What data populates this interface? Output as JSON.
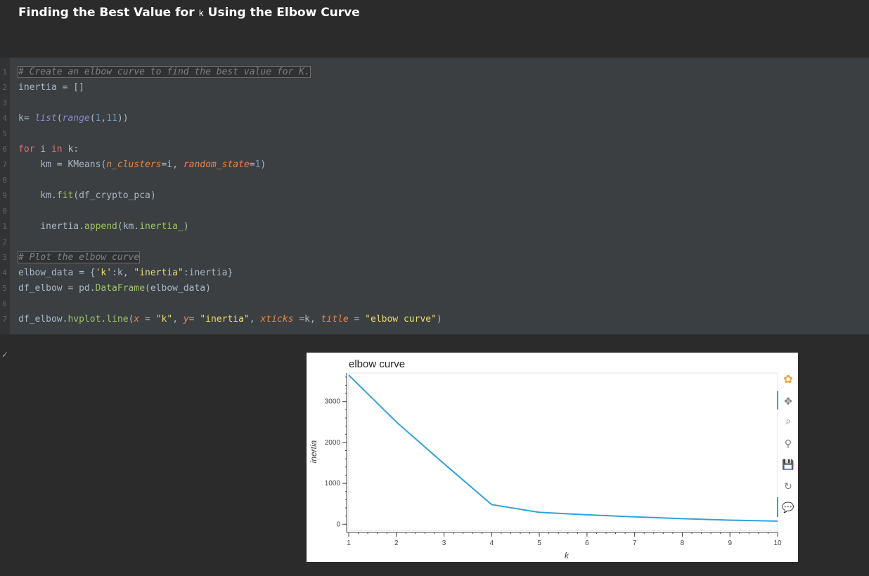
{
  "heading": {
    "before": "Finding the Best Value for ",
    "k": "k",
    "after": " Using the Elbow Curve"
  },
  "code_lines": [
    {
      "n": "1",
      "text": "# Create an elbow curve to find the best value for K."
    },
    {
      "n": "2",
      "text": "inertia = []"
    },
    {
      "n": "3",
      "text": ""
    },
    {
      "n": "4",
      "text": "k= list(range(1,11))"
    },
    {
      "n": "5",
      "text": ""
    },
    {
      "n": "6",
      "text": "for i in k:"
    },
    {
      "n": "7",
      "text": "    km = KMeans(n_clusters=i, random_state=1)"
    },
    {
      "n": "8",
      "text": ""
    },
    {
      "n": "9",
      "text": "    km.fit(df_crypto_pca)"
    },
    {
      "n": "0",
      "text": ""
    },
    {
      "n": "1",
      "text": "    inertia.append(km.inertia_)"
    },
    {
      "n": "2",
      "text": ""
    },
    {
      "n": "3",
      "text": "# Plot the elbow curve"
    },
    {
      "n": "4",
      "text": "elbow_data = {'k':k, \"inertia\":inertia}"
    },
    {
      "n": "5",
      "text": "df_elbow = pd.DataFrame(elbow_data)"
    },
    {
      "n": "6",
      "text": ""
    },
    {
      "n": "7",
      "text": "df_elbow.hvplot.line(x = \"k\", y= \"inertia\", xticks =k, title = \"elbow curve\")"
    }
  ],
  "output_check": "✓",
  "chart_data": {
    "type": "line",
    "title": "elbow curve",
    "xlabel": "k",
    "ylabel": "inertia",
    "x": [
      1,
      2,
      3,
      4,
      5,
      6,
      7,
      8,
      9,
      10
    ],
    "series": [
      {
        "values": [
          3650,
          2500,
          1480,
          480,
          290,
          230,
          180,
          135,
          100,
          75
        ],
        "color": "#30a2da"
      }
    ],
    "xticks": [
      "1",
      "2",
      "3",
      "4",
      "5",
      "6",
      "7",
      "8",
      "9",
      "10"
    ],
    "yticks": [
      "0",
      "1000",
      "2000",
      "3000"
    ],
    "xlim": [
      1,
      10
    ],
    "ylim": [
      -150,
      3700
    ],
    "grid": false,
    "legend": "none"
  },
  "toolbar": {
    "items": [
      {
        "name": "bokeh-logo-icon",
        "glyph": "✿"
      },
      {
        "name": "pan-tool-icon",
        "glyph": "✥"
      },
      {
        "name": "box-zoom-tool-icon",
        "glyph": "⌕"
      },
      {
        "name": "wheel-zoom-tool-icon",
        "glyph": "⚲"
      },
      {
        "name": "save-tool-icon",
        "glyph": "💾"
      },
      {
        "name": "reset-tool-icon",
        "glyph": "↻"
      },
      {
        "name": "hover-tool-icon",
        "glyph": "💬"
      }
    ]
  }
}
